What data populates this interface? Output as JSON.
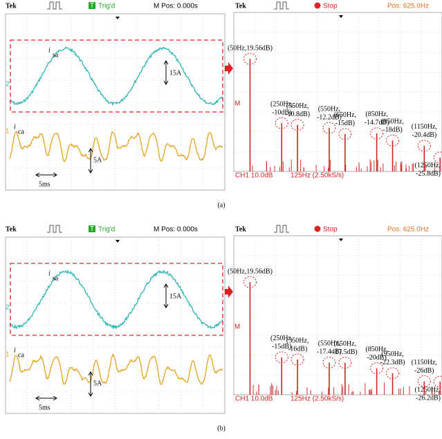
{
  "panels": [
    {
      "label": "(a)",
      "waveform": {
        "brand": "Tek",
        "trigger_icon": "T",
        "trigger": "Trig'd",
        "mpos": "M Pos: 0.000s",
        "ch_top": "2",
        "ch_bottom": "1",
        "signal1": "i",
        "signal1_sub": "sa",
        "scale1": "15A",
        "signal2": "i",
        "signal2_sub": "ca",
        "scale2": "5A",
        "time": "5ms"
      },
      "spectrum": {
        "brand": "Tek",
        "state": "Stop",
        "pos": "Pos: 625.0Hz",
        "marker": "M",
        "footer_ch": "CH1 10.0dB",
        "footer_rate": "125Hz (2.50kS/s)",
        "harmonics": [
          {
            "lines": [
              "(50Hz,19.56dB)"
            ],
            "freq": 50,
            "db": 19.56
          },
          {
            "lines": [
              "(250Hz,",
              "-10dB)"
            ],
            "freq": 250,
            "db": -10
          },
          {
            "lines": [
              "(350Hz,",
              "-10.8dB)"
            ],
            "freq": 350,
            "db": -10.8
          },
          {
            "lines": [
              "(550Hz,",
              "-12.2dB)"
            ],
            "freq": 550,
            "db": -12.2
          },
          {
            "lines": [
              "(650Hz,",
              "-15dB)"
            ],
            "freq": 650,
            "db": -15
          },
          {
            "lines": [
              "(850Hz,",
              "-14.7dB)"
            ],
            "freq": 850,
            "db": -14.7
          },
          {
            "lines": [
              "(950Hz,",
              "-18dB)"
            ],
            "freq": 950,
            "db": -18
          },
          {
            "lines": [
              "(1150Hz,",
              "-20.4dB)"
            ],
            "freq": 1150,
            "db": -20.4
          },
          {
            "lines": [
              "(1250Hz,",
              "-25.8dB)"
            ],
            "freq": 1250,
            "db": -25.8
          }
        ]
      }
    },
    {
      "label": "(b)",
      "waveform": {
        "brand": "Tek",
        "trigger_icon": "T",
        "trigger": "Trig'd",
        "mpos": "M Pos: 0.000s",
        "ch_top": "2",
        "ch_bottom": "1",
        "signal1": "i",
        "signal1_sub": "sa",
        "scale1": "15A",
        "signal2": "i",
        "signal2_sub": "ca",
        "scale2": "5A",
        "time": "5ms"
      },
      "spectrum": {
        "brand": "Tek",
        "state": "Stop",
        "pos": "Pos: 625.0Hz",
        "marker": "M",
        "footer_ch": "CH1 10.0dB",
        "footer_rate": "125Hz (2.50kS/s)",
        "harmonics": [
          {
            "lines": [
              "(50Hz,19.56dB)"
            ],
            "freq": 50,
            "db": 19.56
          },
          {
            "lines": [
              "(250Hz,",
              "-15dB)"
            ],
            "freq": 250,
            "db": -15
          },
          {
            "lines": [
              "(350Hz,",
              "-16dB)"
            ],
            "freq": 350,
            "db": -16
          },
          {
            "lines": [
              "(550Hz,",
              "-17.4dB)"
            ],
            "freq": 550,
            "db": -17.4
          },
          {
            "lines": [
              "(650Hz,",
              "-17.5dB)"
            ],
            "freq": 650,
            "db": -17.5
          },
          {
            "lines": [
              "(850Hz,",
              "-20dB)"
            ],
            "freq": 850,
            "db": -20
          },
          {
            "lines": [
              "(950Hz,",
              "-22.3dB)"
            ],
            "freq": 950,
            "db": -22.3
          },
          {
            "lines": [
              "(1150Hz,",
              "-26dB)"
            ],
            "freq": 1150,
            "db": -26
          },
          {
            "lines": [
              "(1250Hz,",
              "-26.2dB)"
            ],
            "freq": 1250,
            "db": -26.2
          }
        ]
      }
    }
  ]
}
